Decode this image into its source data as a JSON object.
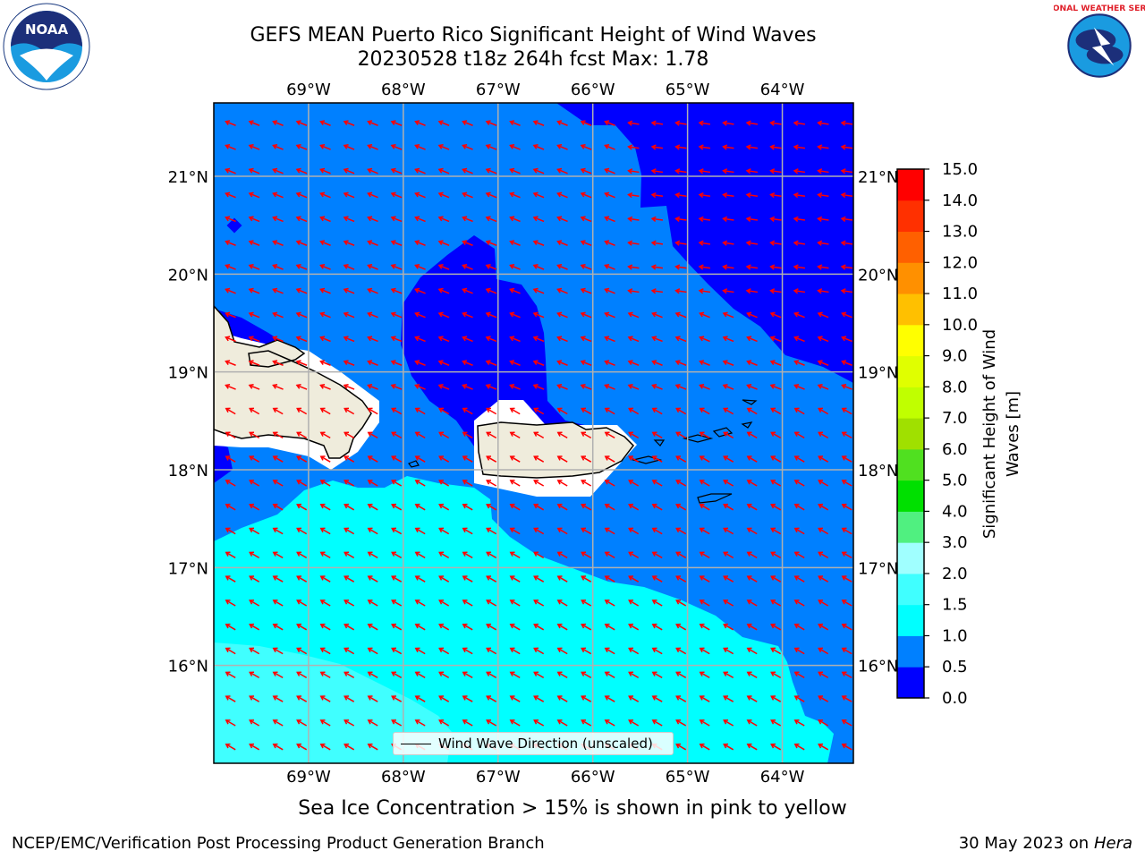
{
  "title": {
    "line1": "GEFS MEAN Puerto Rico Significant Height of Wind Waves",
    "line2": "20230528 t18z 264h fcst   Max: 1.78"
  },
  "map": {
    "lon_labels": [
      "69°W",
      "68°W",
      "67°W",
      "66°W",
      "65°W",
      "64°W"
    ],
    "lat_labels": [
      "21°N",
      "20°N",
      "19°N",
      "18°N",
      "17°N",
      "16°N"
    ],
    "lon_values": [
      -69,
      -68,
      -67,
      -66,
      -65,
      -64
    ],
    "lat_values": [
      21,
      20,
      19,
      18,
      17,
      16
    ],
    "extent": {
      "lon_min": -70.0,
      "lon_max": -63.25,
      "lat_min": 15.0,
      "lat_max": 21.75
    },
    "land_color": "#efecdc",
    "arrow_color": "#ff0000"
  },
  "legend": {
    "label": "Wind Wave Direction (unscaled)"
  },
  "colorbar": {
    "label": "Significant Height of Wind Waves [m]",
    "tick_labels": [
      "0.0",
      "0.5",
      "1.0",
      "1.5",
      "2.0",
      "3.0",
      "4.0",
      "5.0",
      "6.0",
      "7.0",
      "8.0",
      "9.0",
      "10.0",
      "11.0",
      "12.0",
      "13.0",
      "14.0",
      "15.0"
    ],
    "colors": [
      "#0000ff",
      "#0080ff",
      "#00ffff",
      "#40ffff",
      "#a0ffff",
      "#50f080",
      "#00e000",
      "#50e020",
      "#a0e000",
      "#c0ff00",
      "#e0ff00",
      "#ffff00",
      "#ffc000",
      "#ff9000",
      "#ff6000",
      "#ff3000",
      "#ff0000"
    ]
  },
  "ice_note": "Sea Ice Concentration > 15% is shown in pink to yellow",
  "footer": {
    "left": "NCEP/EMC/Verification Post Processing Product Generation Branch",
    "date": "30 May 2023 on",
    "machine": "Hera"
  },
  "logos": {
    "noaa": "NOAA",
    "nws": "NATIONAL WEATHER SERVICE"
  }
}
